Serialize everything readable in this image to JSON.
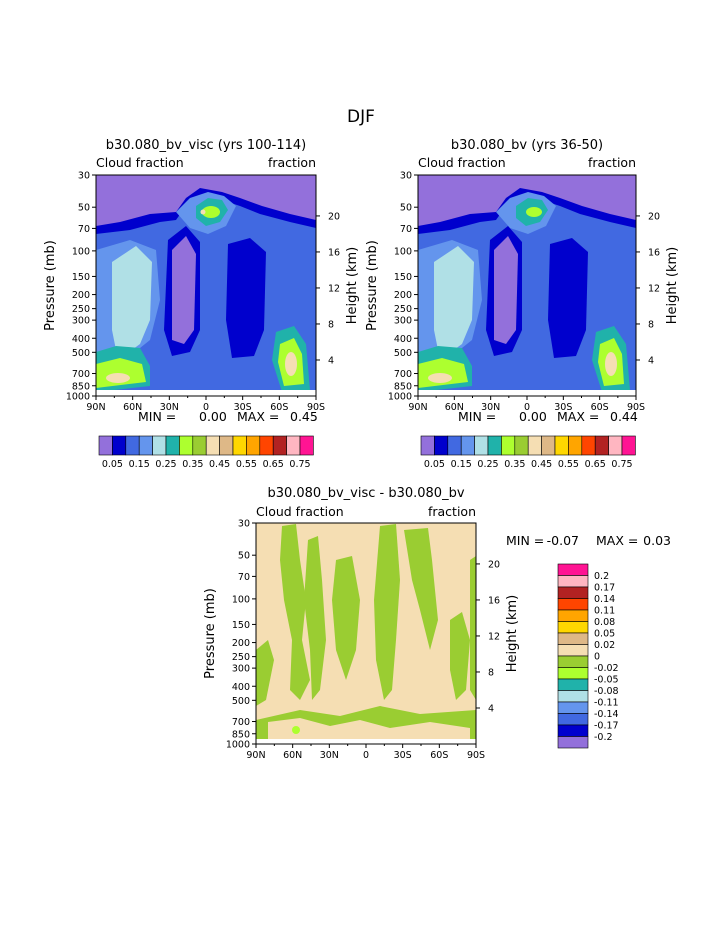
{
  "page_title": "DJF",
  "palette": {
    "panel": [
      "#9370DB",
      "#0000CD",
      "#4169E1",
      "#6495ED",
      "#B0E0E6",
      "#20B2AA",
      "#ADFF2F",
      "#9ACD32",
      "#F5DEB3",
      "#DEB887",
      "#FFD700",
      "#FFA500",
      "#FF4500",
      "#B22222",
      "#FFB6C1",
      "#FF1493"
    ],
    "diff": [
      "#9370DB",
      "#0000CD",
      "#4169E1",
      "#6495ED",
      "#B0E0E6",
      "#20B2AA",
      "#ADFF2F",
      "#9ACD32",
      "#F5DEB3",
      "#DEB887",
      "#FFD700",
      "#FFA500",
      "#FF4500",
      "#B22222",
      "#FFB6C1",
      "#FF1493"
    ]
  },
  "chart_data": [
    {
      "type": "heatmap",
      "title": "b30.080_bv_visc (yrs 100-114)",
      "left_label": "Cloud fraction",
      "right_label": "fraction",
      "ylabel": "Pressure (mb)",
      "ylabel_right": "Height (km)",
      "x_ticks": [
        "90N",
        "60N",
        "30N",
        "0",
        "30S",
        "60S",
        "90S"
      ],
      "y_ticks": [
        "30",
        "50",
        "70",
        "100",
        "150",
        "200",
        "250",
        "300",
        "400",
        "500",
        "700",
        "850",
        "1000"
      ],
      "y_ticks_right": [
        "20",
        "16",
        "12",
        "8",
        "4"
      ],
      "min_label": "MIN =",
      "min_value": "0.00",
      "max_label": "MAX =",
      "max_value": "0.45",
      "colorbar_labels": [
        "0.05",
        "0.15",
        "0.25",
        "0.35",
        "0.45",
        "0.55",
        "0.65",
        "0.75"
      ]
    },
    {
      "type": "heatmap",
      "title": "b30.080_bv (yrs 36-50)",
      "left_label": "Cloud fraction",
      "right_label": "fraction",
      "ylabel": "Pressure (mb)",
      "ylabel_right": "Height (km)",
      "x_ticks": [
        "90N",
        "60N",
        "30N",
        "0",
        "30S",
        "60S",
        "90S"
      ],
      "y_ticks": [
        "30",
        "50",
        "70",
        "100",
        "150",
        "200",
        "250",
        "300",
        "400",
        "500",
        "700",
        "850",
        "1000"
      ],
      "y_ticks_right": [
        "20",
        "16",
        "12",
        "8",
        "4"
      ],
      "min_label": "MIN =",
      "min_value": "0.00",
      "max_label": "MAX =",
      "max_value": "0.44",
      "colorbar_labels": [
        "0.05",
        "0.15",
        "0.25",
        "0.35",
        "0.45",
        "0.55",
        "0.65",
        "0.75"
      ]
    },
    {
      "type": "heatmap",
      "title": "b30.080_bv_visc - b30.080_bv",
      "left_label": "Cloud fraction",
      "right_label": "fraction",
      "ylabel": "Pressure (mb)",
      "ylabel_right": "Height (km)",
      "x_ticks": [
        "90N",
        "60N",
        "30N",
        "0",
        "30S",
        "60S",
        "90S"
      ],
      "y_ticks": [
        "30",
        "50",
        "70",
        "100",
        "150",
        "200",
        "250",
        "300",
        "400",
        "500",
        "700",
        "850",
        "1000"
      ],
      "y_ticks_right": [
        "20",
        "16",
        "12",
        "8",
        "4"
      ],
      "min_label": "MIN =",
      "min_value": "-0.07",
      "max_label": "MAX =",
      "max_value": "0.03",
      "colorbar_labels": [
        "0.2",
        "0.17",
        "0.14",
        "0.11",
        "0.08",
        "0.05",
        "0.02",
        "0",
        "-0.02",
        "-0.05",
        "-0.08",
        "-0.11",
        "-0.14",
        "-0.17",
        "-0.2"
      ]
    }
  ]
}
